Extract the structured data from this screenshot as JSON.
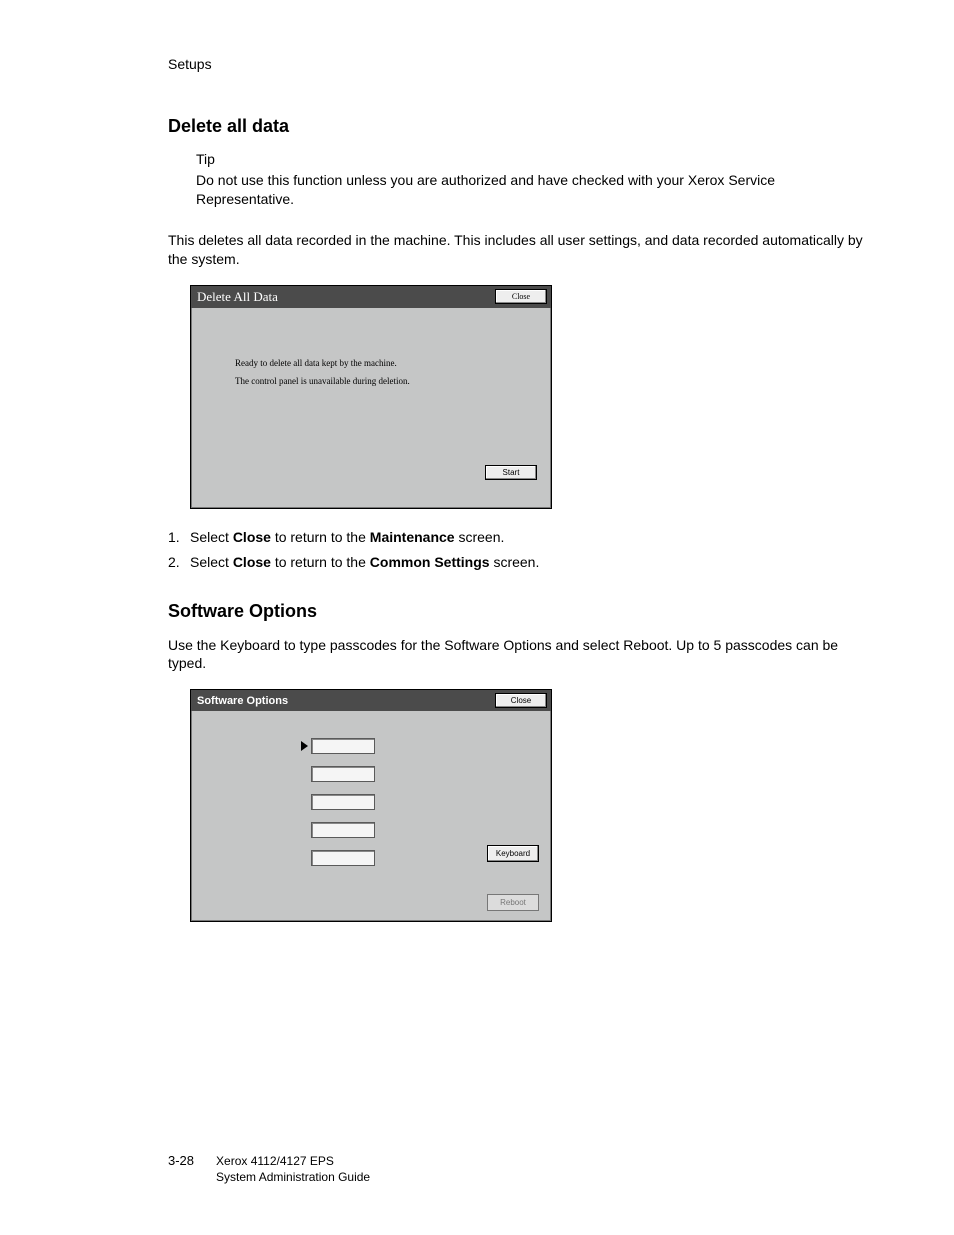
{
  "chapter": "Setups",
  "section1": {
    "heading": "Delete all data",
    "tip_label": "Tip",
    "tip_body": "Do not use this function unless you are authorized and have checked with your Xerox Service Representative.",
    "intro": "This deletes all data recorded in the machine. This includes all user settings, and data recorded automatically by the system.",
    "dialog": {
      "title": "Delete All Data",
      "close": "Close",
      "line1": "Ready to delete all data kept by the machine.",
      "line2": "The control panel is unavailable during deletion.",
      "start": "Start"
    },
    "steps": {
      "s1_pre": "Select ",
      "s1_b1": "Close",
      "s1_mid": " to return to the ",
      "s1_b2": "Maintenance",
      "s1_post": " screen.",
      "s2_pre": "Select ",
      "s2_b1": "Close",
      "s2_mid": " to return to the ",
      "s2_b2": "Common Settings",
      "s2_post": " screen."
    }
  },
  "section2": {
    "heading": "Software Options",
    "intro": "Use the Keyboard to type passcodes for the Software Options and select Reboot. Up to 5 passcodes can be typed.",
    "dialog": {
      "title": "Software Options",
      "close": "Close",
      "keyboard": "Keyboard",
      "reboot": "Reboot"
    }
  },
  "footer": {
    "page_num": "3-28",
    "line1": "Xerox 4112/4127 EPS",
    "line2": "System Administration Guide"
  }
}
